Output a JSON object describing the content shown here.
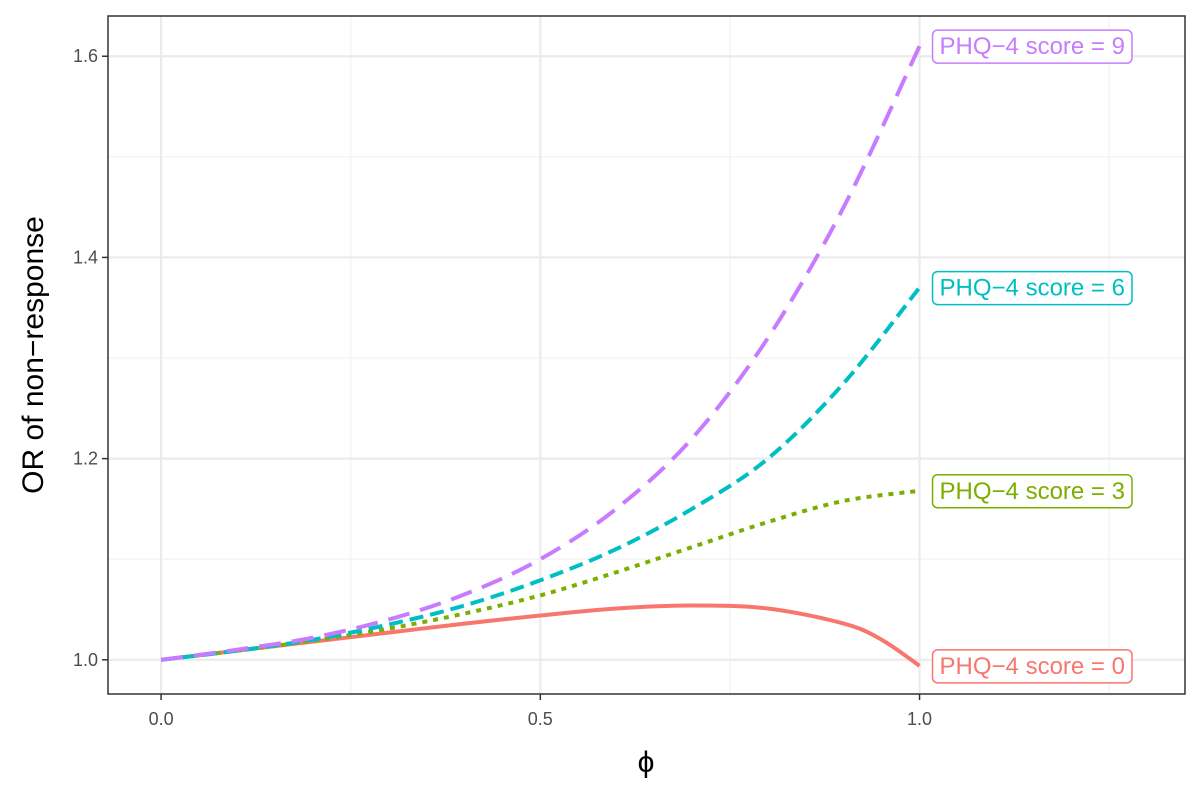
{
  "chart_data": {
    "type": "line",
    "title": "",
    "xlabel": "ϕ",
    "ylabel": "OR of non−response",
    "xlim": [
      -0.07,
      1.35
    ],
    "ylim": [
      0.966,
      1.64
    ],
    "x_ticks": [
      0.0,
      0.5,
      1.0
    ],
    "x_tick_labels": [
      "0.0",
      "0.5",
      "1.0"
    ],
    "x_minor_ticks": [
      0.25,
      0.75,
      1.25
    ],
    "y_ticks": [
      1.0,
      1.2,
      1.4,
      1.6
    ],
    "y_tick_labels": [
      "1.0",
      "1.2",
      "1.4",
      "1.6"
    ],
    "y_minor_ticks": [
      1.1,
      1.3,
      1.5
    ],
    "grid": true,
    "legend": "direct labels at line ends (right)",
    "series": [
      {
        "name": "PHQ−4 score = 0",
        "label": "PHQ−4 score = 0",
        "color": "#F8766D",
        "line_style": "solid",
        "x": [
          0.0,
          0.1,
          0.2,
          0.3,
          0.4,
          0.5,
          0.6,
          0.7,
          0.8,
          0.9,
          0.95,
          1.0
        ],
        "y": [
          1.0,
          1.009,
          1.018,
          1.027,
          1.036,
          1.044,
          1.051,
          1.054,
          1.051,
          1.036,
          1.02,
          0.994
        ]
      },
      {
        "name": "PHQ−4 score = 3",
        "label": "PHQ−4 score = 3",
        "color": "#7CAE00",
        "line_style": "dotted",
        "x": [
          0.0,
          0.1,
          0.2,
          0.3,
          0.4,
          0.5,
          0.6,
          0.7,
          0.8,
          0.9,
          1.0
        ],
        "y": [
          1.0,
          1.009,
          1.019,
          1.031,
          1.046,
          1.064,
          1.087,
          1.112,
          1.137,
          1.158,
          1.168
        ]
      },
      {
        "name": "PHQ−4 score = 6",
        "label": "PHQ−4 score = 6",
        "color": "#00BFC4",
        "line_style": "dashed",
        "x": [
          0.0,
          0.1,
          0.2,
          0.3,
          0.4,
          0.5,
          0.6,
          0.7,
          0.8,
          0.9,
          1.0
        ],
        "y": [
          1.0,
          1.009,
          1.02,
          1.035,
          1.054,
          1.079,
          1.11,
          1.15,
          1.2,
          1.275,
          1.37
        ]
      },
      {
        "name": "PHQ−4 score = 9",
        "label": "PHQ−4 score = 9",
        "color": "#C77CFF",
        "line_style": "longdash",
        "x": [
          0.0,
          0.1,
          0.2,
          0.3,
          0.4,
          0.5,
          0.6,
          0.7,
          0.8,
          0.9,
          1.0
        ],
        "y": [
          1.0,
          1.01,
          1.022,
          1.04,
          1.065,
          1.1,
          1.15,
          1.22,
          1.32,
          1.45,
          1.61
        ]
      }
    ]
  }
}
